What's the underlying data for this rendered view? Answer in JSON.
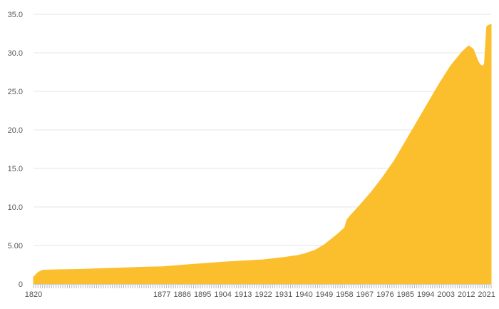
{
  "chart_data": {
    "type": "area",
    "title": "",
    "xlabel": "",
    "ylabel": "",
    "color": "#FBBF2E",
    "xlim": [
      1820,
      2023
    ],
    "ylim": [
      0,
      35
    ],
    "grid": true,
    "legend": "none",
    "y_ticks": [
      "0",
      "5.00",
      "10.0",
      "15.0",
      "20.0",
      "25.0",
      "30.0",
      "35.0"
    ],
    "x_ticks": [
      "1820",
      "1877",
      "1886",
      "1895",
      "1904",
      "1913",
      "1922",
      "1931",
      "1940",
      "1949",
      "1958",
      "1967",
      "1976",
      "1985",
      "1994",
      "2003",
      "2012",
      "2021"
    ],
    "x": [
      1820,
      1822,
      1824,
      1830,
      1840,
      1850,
      1860,
      1870,
      1877,
      1886,
      1895,
      1904,
      1913,
      1922,
      1931,
      1937,
      1940,
      1945,
      1949,
      1952,
      1955,
      1958,
      1959,
      1960,
      1965,
      1970,
      1975,
      1980,
      1985,
      1990,
      1995,
      2000,
      2005,
      2010,
      2013,
      2015,
      2016,
      2017,
      2018,
      2019,
      2020,
      2021,
      2022,
      2023
    ],
    "values": [
      0.9,
      1.5,
      1.8,
      1.85,
      1.9,
      2.0,
      2.1,
      2.2,
      2.25,
      2.45,
      2.65,
      2.85,
      3.0,
      3.15,
      3.45,
      3.7,
      3.9,
      4.4,
      5.1,
      5.8,
      6.5,
      7.3,
      8.3,
      8.7,
      10.3,
      12.0,
      13.9,
      16.0,
      18.5,
      21.0,
      23.5,
      26.0,
      28.3,
      30.1,
      30.9,
      30.5,
      29.8,
      29.0,
      28.5,
      28.3,
      28.5,
      33.4,
      33.6,
      33.7
    ]
  }
}
